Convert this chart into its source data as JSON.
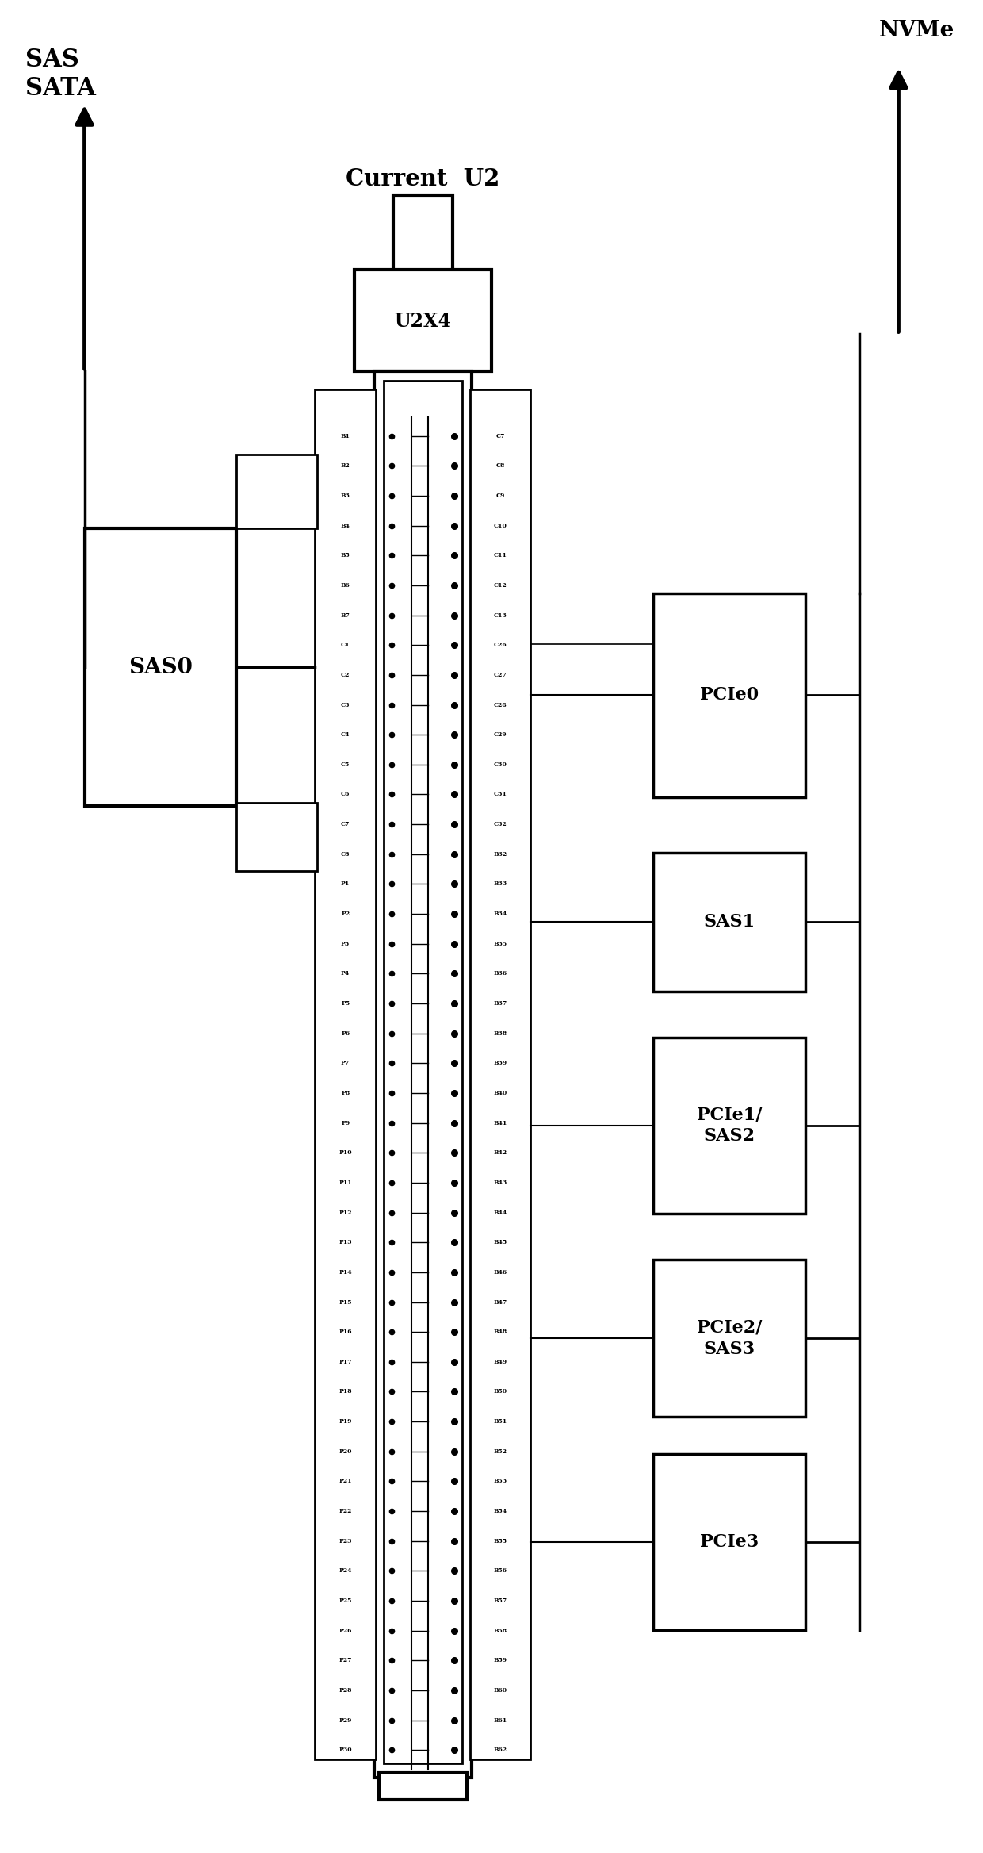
{
  "title": "Current  U2",
  "connector_label": "U2X4",
  "sas_sata_label": "SAS\nSATA",
  "nvme_label": "NVMe",
  "bg_color": "#ffffff",
  "line_color": "#000000",
  "left_pin_labels": [
    "B1",
    "B2",
    "B3",
    "B4",
    "B5",
    "B6",
    "B7",
    "C1",
    "C2",
    "C3",
    "C4",
    "C5",
    "C6",
    "C7",
    "C8",
    "P1",
    "P2",
    "P3",
    "P4",
    "P5",
    "P6",
    "P7",
    "P8",
    "P9",
    "P10",
    "P11",
    "P12",
    "P13",
    "P14",
    "P15",
    "P16",
    "P17",
    "P18",
    "P19",
    "P20",
    "P21",
    "P22",
    "P23",
    "P24",
    "P25",
    "P26",
    "P27",
    "P28",
    "P29",
    "P30"
  ],
  "right_pin_labels": [
    "C7",
    "C8",
    "C9",
    "C10",
    "C11",
    "C12",
    "C13",
    "C26",
    "C27",
    "C28",
    "C29",
    "C30",
    "C31",
    "C32",
    "B32",
    "B33",
    "B34",
    "B35",
    "B36",
    "B37",
    "B38",
    "B39",
    "B40",
    "B41",
    "B42",
    "B43",
    "B44",
    "B45",
    "B46",
    "B47",
    "B48",
    "B49",
    "B50",
    "B51",
    "B52",
    "B53",
    "B54",
    "B55",
    "B56",
    "B57",
    "B58",
    "B59",
    "B60",
    "B61",
    "B62"
  ],
  "right_blocks": [
    {
      "label": "PCIe0",
      "bx": 0.665,
      "by": 0.57,
      "bw": 0.155,
      "bh": 0.11
    },
    {
      "label": "SAS1",
      "bx": 0.665,
      "by": 0.465,
      "bw": 0.155,
      "bh": 0.075
    },
    {
      "label": "PCIe1/\nSAS2",
      "bx": 0.665,
      "by": 0.345,
      "bw": 0.155,
      "bh": 0.095
    },
    {
      "label": "PCIe2/\nSAS3",
      "bx": 0.665,
      "by": 0.235,
      "bw": 0.155,
      "bh": 0.085
    },
    {
      "label": "PCIe3",
      "bx": 0.665,
      "by": 0.12,
      "bw": 0.155,
      "bh": 0.095
    }
  ],
  "sas0_block": {
    "label": "SAS0",
    "bx": 0.085,
    "by": 0.565,
    "bw": 0.155,
    "bh": 0.15
  }
}
